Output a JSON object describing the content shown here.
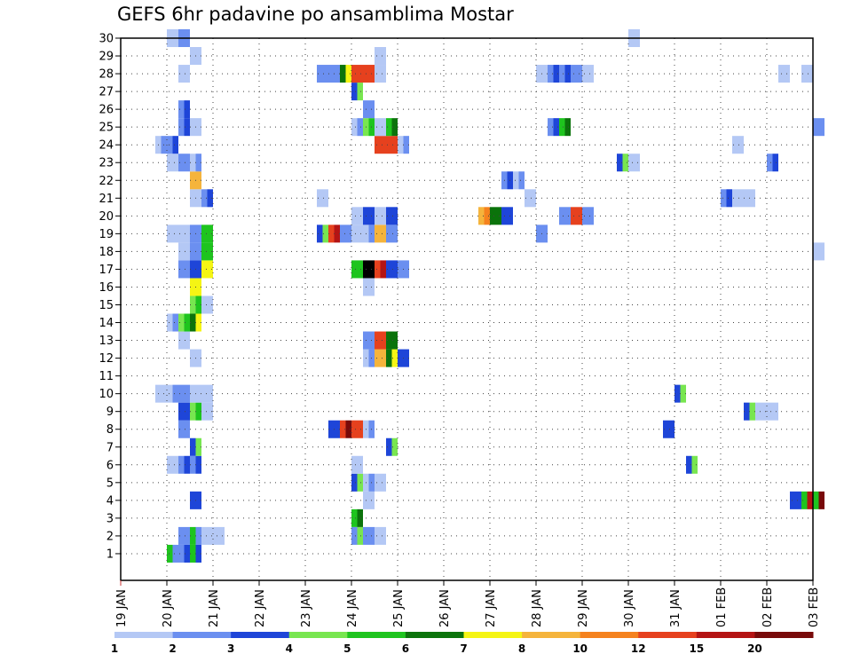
{
  "chart_data": {
    "type": "heatmap",
    "title": "GEFS 6hr padavine po ansamblima Mostar",
    "xlabel": "",
    "ylabel": "",
    "x_start": "19 JAN 00Z",
    "step_hours": 6,
    "x_range_days": [
      0,
      15
    ],
    "x_ticks": [
      "19 JAN",
      "20 JAN",
      "21 JAN",
      "22 JAN",
      "23 JAN",
      "24 JAN",
      "25 JAN",
      "26 JAN",
      "27 JAN",
      "28 JAN",
      "29 JAN",
      "30 JAN",
      "31 JAN",
      "01 FEB",
      "02 FEB",
      "03 FEB"
    ],
    "y_ticks": [
      "1",
      "2",
      "3",
      "4",
      "5",
      "6",
      "7",
      "8",
      "9",
      "10",
      "11",
      "12",
      "13",
      "14",
      "15",
      "16",
      "17",
      "18",
      "19",
      "20",
      "21",
      "22",
      "23",
      "24",
      "25",
      "26",
      "27",
      "28",
      "29",
      "30"
    ],
    "y_range": [
      0,
      30
    ],
    "grid": true,
    "legend": {
      "position": "bottom",
      "colors": [
        "#b4c8f5",
        "#6b8ff0",
        "#1e45d8",
        "#78e650",
        "#1ec41e",
        "#0b730b",
        "#f5f514",
        "#f5b43c",
        "#f5821e",
        "#e6411e",
        "#b41414",
        "#780a0a"
      ],
      "labels": [
        "1",
        "2",
        "3",
        "4",
        "5",
        "6",
        "7",
        "8",
        "10",
        "12",
        "15",
        "20"
      ]
    },
    "cells": [
      [
        1,
        4,
        5,
        2
      ],
      [
        1,
        5,
        2,
        3
      ],
      [
        1,
        6,
        5,
        3
      ],
      [
        2,
        5,
        2,
        2
      ],
      [
        2,
        6,
        5,
        2
      ],
      [
        2,
        7,
        1,
        1
      ],
      [
        2,
        8,
        1,
        1
      ],
      [
        2,
        20,
        2,
        4
      ],
      [
        2,
        21,
        2,
        2
      ],
      [
        2,
        22,
        1,
        1
      ],
      [
        3,
        20,
        5,
        6
      ],
      [
        4,
        6,
        3,
        3
      ],
      [
        4,
        21,
        1,
        1
      ],
      [
        4,
        58,
        3,
        3
      ],
      [
        4,
        59,
        5,
        11
      ],
      [
        4,
        60,
        5,
        12
      ],
      [
        5,
        20,
        3,
        4
      ],
      [
        5,
        21,
        1,
        2
      ],
      [
        5,
        22,
        1,
        1
      ],
      [
        6,
        4,
        1,
        1
      ],
      [
        6,
        5,
        2,
        3
      ],
      [
        6,
        6,
        2,
        3
      ],
      [
        6,
        20,
        1,
        1
      ],
      [
        6,
        49,
        3,
        4
      ],
      [
        7,
        6,
        3,
        4
      ],
      [
        7,
        23,
        3,
        4
      ],
      [
        8,
        5,
        2,
        2
      ],
      [
        8,
        18,
        3,
        3
      ],
      [
        8,
        19,
        10,
        12
      ],
      [
        8,
        20,
        10,
        10
      ],
      [
        8,
        21,
        1,
        2
      ],
      [
        8,
        47,
        3,
        3
      ],
      [
        9,
        5,
        3,
        3
      ],
      [
        9,
        6,
        4,
        5
      ],
      [
        9,
        7,
        1,
        1
      ],
      [
        9,
        54,
        3,
        4
      ],
      [
        9,
        55,
        1,
        1
      ],
      [
        9,
        56,
        1,
        1
      ],
      [
        10,
        3,
        1,
        1
      ],
      [
        10,
        4,
        1,
        2
      ],
      [
        10,
        5,
        2,
        2
      ],
      [
        10,
        6,
        1,
        1
      ],
      [
        10,
        7,
        1,
        1
      ],
      [
        10,
        48,
        3,
        4
      ],
      [
        12,
        6,
        1,
        1
      ],
      [
        12,
        21,
        1,
        2
      ],
      [
        12,
        22,
        8,
        8
      ],
      [
        12,
        23,
        6,
        7
      ],
      [
        12,
        24,
        3,
        3
      ],
      [
        13,
        5,
        1,
        1
      ],
      [
        13,
        21,
        2,
        2
      ],
      [
        13,
        22,
        10,
        10
      ],
      [
        13,
        23,
        6,
        6
      ],
      [
        14,
        4,
        1,
        2
      ],
      [
        14,
        5,
        4,
        5
      ],
      [
        14,
        6,
        6,
        7
      ],
      [
        15,
        6,
        4,
        5
      ],
      [
        15,
        7,
        1,
        1
      ],
      [
        16,
        6,
        7,
        7
      ],
      [
        16,
        21,
        1,
        1
      ],
      [
        17,
        5,
        2,
        2
      ],
      [
        17,
        6,
        3,
        3
      ],
      [
        17,
        7,
        7,
        7
      ],
      [
        17,
        20,
        5,
        5
      ],
      [
        17,
        21,
        20,
        20
      ],
      [
        17,
        22,
        10,
        11
      ],
      [
        17,
        23,
        3,
        3
      ],
      [
        17,
        24,
        2,
        2
      ],
      [
        18,
        5,
        1,
        1
      ],
      [
        18,
        6,
        2,
        2
      ],
      [
        18,
        7,
        5,
        5
      ],
      [
        18,
        60,
        1,
        1
      ],
      [
        19,
        4,
        1,
        1
      ],
      [
        19,
        5,
        1,
        1
      ],
      [
        19,
        6,
        2,
        2
      ],
      [
        19,
        7,
        5,
        5
      ],
      [
        19,
        17,
        3,
        4
      ],
      [
        19,
        18,
        10,
        11
      ],
      [
        19,
        19,
        2,
        2
      ],
      [
        19,
        20,
        1,
        1
      ],
      [
        19,
        21,
        1,
        2
      ],
      [
        19,
        22,
        8,
        8
      ],
      [
        19,
        23,
        2,
        2
      ],
      [
        19,
        36,
        2,
        2
      ],
      [
        20,
        20,
        1,
        1
      ],
      [
        20,
        21,
        3,
        3
      ],
      [
        20,
        22,
        1,
        1
      ],
      [
        20,
        23,
        3,
        3
      ],
      [
        20,
        31,
        8,
        9
      ],
      [
        20,
        32,
        6,
        6
      ],
      [
        20,
        33,
        3,
        3
      ],
      [
        20,
        38,
        2,
        2
      ],
      [
        20,
        39,
        10,
        10
      ],
      [
        20,
        40,
        2,
        2
      ],
      [
        21,
        6,
        1,
        1
      ],
      [
        21,
        7,
        2,
        3
      ],
      [
        21,
        17,
        1,
        1
      ],
      [
        21,
        35,
        1,
        1
      ],
      [
        21,
        52,
        2,
        3
      ],
      [
        21,
        53,
        1,
        1
      ],
      [
        21,
        54,
        1,
        1
      ],
      [
        22,
        6,
        8,
        8
      ],
      [
        22,
        33,
        2,
        3
      ],
      [
        22,
        34,
        1,
        2
      ],
      [
        23,
        4,
        1,
        1
      ],
      [
        23,
        5,
        2,
        2
      ],
      [
        23,
        6,
        1,
        2
      ],
      [
        23,
        43,
        3,
        4
      ],
      [
        23,
        44,
        1,
        1
      ],
      [
        23,
        56,
        2,
        3
      ],
      [
        24,
        3,
        1,
        2
      ],
      [
        24,
        4,
        2,
        3
      ],
      [
        24,
        22,
        10,
        10
      ],
      [
        24,
        23,
        10,
        10
      ],
      [
        24,
        24,
        1,
        2
      ],
      [
        24,
        53,
        1,
        1
      ],
      [
        25,
        5,
        2,
        3
      ],
      [
        25,
        6,
        1,
        1
      ],
      [
        25,
        20,
        1,
        2
      ],
      [
        25,
        21,
        4,
        5
      ],
      [
        25,
        22,
        1,
        1
      ],
      [
        25,
        23,
        5,
        6
      ],
      [
        25,
        37,
        2,
        3
      ],
      [
        25,
        38,
        5,
        6
      ],
      [
        25,
        60,
        2,
        2
      ],
      [
        26,
        5,
        2,
        3
      ],
      [
        26,
        21,
        2,
        2
      ],
      [
        27,
        20,
        3,
        4
      ],
      [
        28,
        5,
        1,
        1
      ],
      [
        28,
        17,
        2,
        2
      ],
      [
        28,
        18,
        2,
        2
      ],
      [
        28,
        19,
        6,
        7
      ],
      [
        28,
        20,
        10,
        10
      ],
      [
        28,
        21,
        10,
        10
      ],
      [
        28,
        22,
        1,
        1
      ],
      [
        28,
        36,
        1,
        1
      ],
      [
        28,
        37,
        2,
        3
      ],
      [
        28,
        38,
        2,
        3
      ],
      [
        28,
        39,
        2,
        2
      ],
      [
        28,
        40,
        1,
        1
      ],
      [
        28,
        57,
        1,
        1
      ],
      [
        28,
        59,
        1,
        1
      ],
      [
        29,
        6,
        1,
        1
      ],
      [
        29,
        22,
        1,
        1
      ],
      [
        30,
        4,
        1,
        1
      ],
      [
        30,
        5,
        2,
        2
      ],
      [
        30,
        44,
        1,
        1
      ]
    ]
  }
}
